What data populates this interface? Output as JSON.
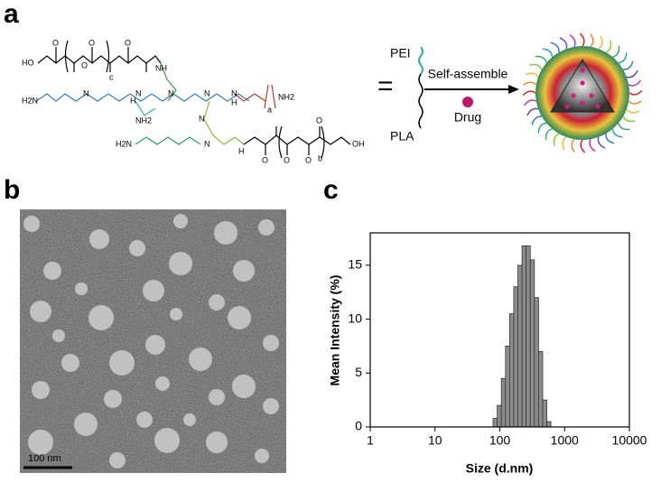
{
  "panel_labels": [
    "a",
    "b",
    "c"
  ],
  "scheme": {
    "structure_labels": [
      "HO",
      "O",
      "O",
      "O",
      "O",
      "c",
      "NH",
      "H2N",
      "N",
      "H",
      "N",
      "N",
      "N",
      "H",
      "N",
      "a",
      "NH2",
      "NH2",
      "H2N",
      "N",
      "N",
      "H",
      "O",
      "O",
      "O",
      "b",
      "OH",
      "O"
    ],
    "equals": "=",
    "pei": "PEI",
    "pla": "PLA",
    "arrow_label": "Self-assemble",
    "drug": "Drug"
  },
  "tem": {
    "scale_bar": "100 nm"
  },
  "chart_data": {
    "type": "histogram",
    "x_label": "Size (d.nm)",
    "y_label": "Mean Intensity (%)",
    "log_x": true,
    "color": "#8c8c8c",
    "bins": [
      78.8,
      91.3,
      105.7,
      122.4,
      141.8,
      164.2,
      190.1,
      220.2,
      255.0,
      295.3,
      342.0,
      396.1,
      458.7,
      531.2,
      615.1
    ],
    "values": [
      0.8,
      2.0,
      4.5,
      7.5,
      10.5,
      13.0,
      15.0,
      16.8,
      16.8,
      15.5,
      12.0,
      7.0,
      2.5,
      0.5
    ],
    "xlim": [
      1,
      10000
    ],
    "xticks": [
      1,
      10,
      100,
      1000,
      10000
    ],
    "ylim": [
      0,
      18
    ],
    "yticks": [
      0,
      5,
      10,
      15
    ]
  }
}
